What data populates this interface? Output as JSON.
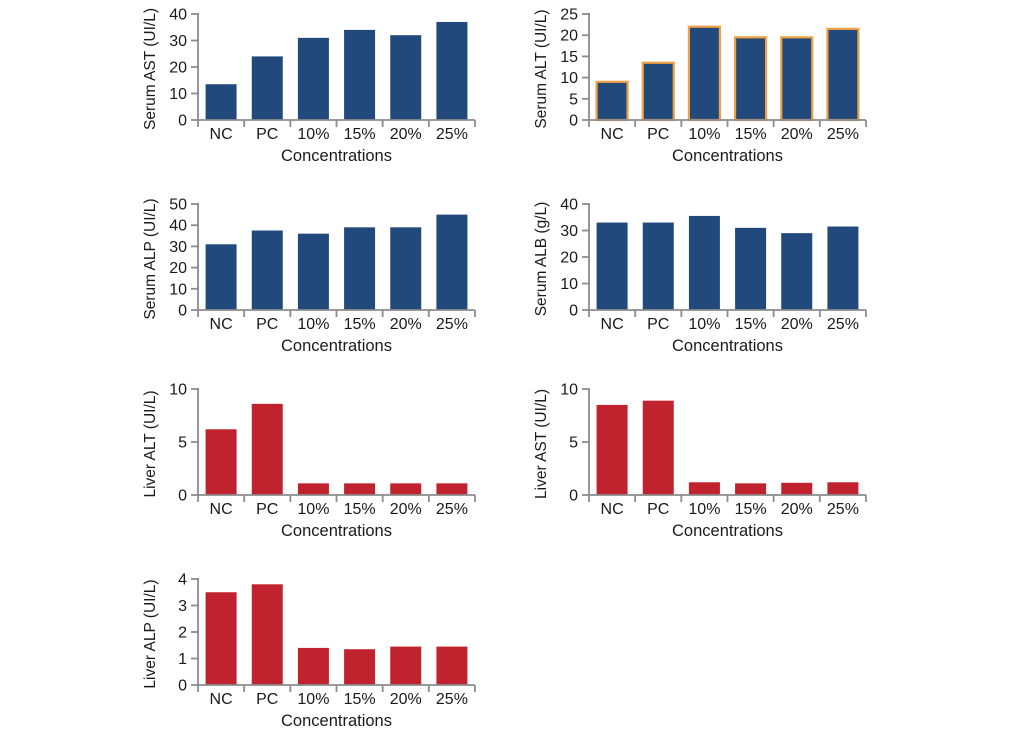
{
  "page": {
    "background": "#ffffff",
    "description": "Panel of seven bar charts showing serum and liver enzyme levels across concentrations"
  },
  "colors": {
    "serum_bar_fill": "#21497B",
    "liver_bar_fill": "#C0232E",
    "alt_bar_outline": "#F0A144",
    "axis_line": "#8C8C8C",
    "label_text": "#1A1A1A"
  },
  "chart_data": [
    {
      "type": "bar",
      "id": "serum-ast",
      "title": "",
      "ylabel": "Serum AST (UI/L)",
      "xlabel": "Concentrations",
      "categories": [
        "NC",
        "PC",
        "10%",
        "15%",
        "20%",
        "25%"
      ],
      "values": [
        13.5,
        24,
        31,
        34,
        32,
        37
      ],
      "ylim": [
        0,
        40
      ],
      "ytick_step": 10,
      "grid": false,
      "legend": "none",
      "bar_color": "#21497B",
      "bar_outline": null
    },
    {
      "type": "bar",
      "id": "serum-alt",
      "title": "",
      "ylabel": "Serum ALT (UI/L)",
      "xlabel": "Concentrations",
      "categories": [
        "NC",
        "PC",
        "10%",
        "15%",
        "20%",
        "25%"
      ],
      "values": [
        9,
        13.5,
        22,
        19.5,
        19.5,
        21.5
      ],
      "ylim": [
        0,
        25
      ],
      "ytick_step": 5,
      "grid": false,
      "legend": "none",
      "bar_color": "#21497B",
      "bar_outline": "#F0A144"
    },
    {
      "type": "bar",
      "id": "serum-alp",
      "title": "",
      "ylabel": "Serum ALP (UI/L)",
      "xlabel": "Concentrations",
      "categories": [
        "NC",
        "PC",
        "10%",
        "15%",
        "20%",
        "25%"
      ],
      "values": [
        31,
        37.5,
        36,
        39,
        39,
        45
      ],
      "ylim": [
        0,
        50
      ],
      "ytick_step": 10,
      "grid": false,
      "legend": "none",
      "bar_color": "#21497B",
      "bar_outline": null
    },
    {
      "type": "bar",
      "id": "serum-alb",
      "title": "",
      "ylabel": "Serum ALB (g/L)",
      "xlabel": "Concentrations",
      "categories": [
        "NC",
        "PC",
        "10%",
        "15%",
        "20%",
        "25%"
      ],
      "values": [
        33,
        33,
        35.5,
        31,
        29,
        31.5
      ],
      "ylim": [
        0,
        40
      ],
      "ytick_step": 10,
      "grid": false,
      "legend": "none",
      "bar_color": "#21497B",
      "bar_outline": null
    },
    {
      "type": "bar",
      "id": "liver-alt",
      "title": "",
      "ylabel": "Liver ALT (UI/L)",
      "xlabel": "Concentrations",
      "categories": [
        "NC",
        "PC",
        "10%",
        "15%",
        "20%",
        "25%"
      ],
      "values": [
        6.2,
        8.6,
        1.1,
        1.1,
        1.1,
        1.1
      ],
      "ylim": [
        0,
        10
      ],
      "ytick_step": 5,
      "grid": false,
      "legend": "none",
      "bar_color": "#C0232E",
      "bar_outline": null
    },
    {
      "type": "bar",
      "id": "liver-ast",
      "title": "",
      "ylabel": "Liver AST (UI/L)",
      "xlabel": "Concentrations",
      "categories": [
        "NC",
        "PC",
        "10%",
        "15%",
        "20%",
        "25%"
      ],
      "values": [
        8.5,
        8.9,
        1.2,
        1.1,
        1.15,
        1.2
      ],
      "ylim": [
        0,
        10
      ],
      "ytick_step": 5,
      "grid": false,
      "legend": "none",
      "bar_color": "#C0232E",
      "bar_outline": null
    },
    {
      "type": "bar",
      "id": "liver-alp",
      "title": "",
      "ylabel": "Liver ALP (UI/L)",
      "xlabel": "Concentrations",
      "categories": [
        "NC",
        "PC",
        "10%",
        "15%",
        "20%",
        "25%"
      ],
      "values": [
        3.5,
        3.8,
        1.4,
        1.35,
        1.45,
        1.45
      ],
      "ylim": [
        0,
        4
      ],
      "ytick_step": 1,
      "grid": false,
      "legend": "none",
      "bar_color": "#C0232E",
      "bar_outline": null
    }
  ]
}
